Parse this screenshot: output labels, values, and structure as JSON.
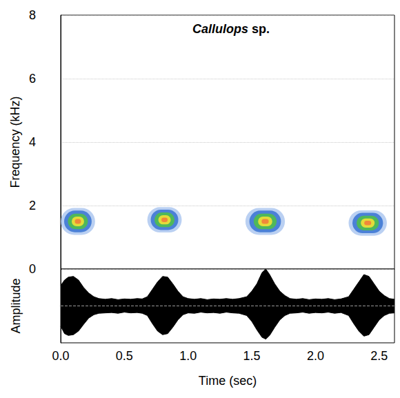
{
  "chart_data": [
    {
      "type": "spectrogram",
      "title": "Callulops sp.",
      "ylabel": "Frequency (kHz)",
      "xlim": [
        0,
        2.62
      ],
      "ylim": [
        0,
        8
      ],
      "yticks": [
        0,
        2,
        4,
        6,
        8
      ],
      "grid": true,
      "tick_labels": "y",
      "calls": {
        "start": [
          0.0,
          0.68,
          1.45,
          2.26
        ],
        "end": [
          0.27,
          0.95,
          1.76,
          2.56
        ],
        "low": [
          1.1,
          1.15,
          1.1,
          1.15
        ],
        "high": [
          1.95,
          1.95,
          1.95,
          1.95
        ],
        "peak": [
          1.5,
          1.55,
          1.5,
          1.45
        ]
      }
    },
    {
      "type": "area",
      "ylabel": "Amplitude",
      "xlabel": "Time (sec)",
      "color": "#000000",
      "xlim": [
        0,
        2.62
      ],
      "xticks": [
        {
          "value": 0,
          "label": "0.0"
        },
        {
          "value": 0.5,
          "label": "0.5"
        },
        {
          "value": 1,
          "label": "1.0"
        },
        {
          "value": 1.5,
          "label": "1.5"
        },
        {
          "value": 2,
          "label": "2.0"
        },
        {
          "value": 2.5,
          "label": "2.5"
        }
      ],
      "ylim": [
        -1,
        1
      ],
      "grid": false,
      "tick_labels": "x",
      "x": [
        0.0,
        0.03,
        0.06,
        0.1,
        0.14,
        0.18,
        0.22,
        0.26,
        0.3,
        0.35,
        0.4,
        0.45,
        0.5,
        0.55,
        0.6,
        0.64,
        0.68,
        0.72,
        0.76,
        0.8,
        0.84,
        0.88,
        0.92,
        0.96,
        1.0,
        1.05,
        1.1,
        1.15,
        1.2,
        1.25,
        1.3,
        1.35,
        1.4,
        1.46,
        1.5,
        1.54,
        1.58,
        1.61,
        1.64,
        1.68,
        1.72,
        1.76,
        1.8,
        1.85,
        1.9,
        1.95,
        2.0,
        2.05,
        2.1,
        2.15,
        2.2,
        2.26,
        2.3,
        2.34,
        2.38,
        2.42,
        2.46,
        2.5,
        2.54,
        2.58,
        2.62
      ],
      "envelope": {
        "upper": [
          0.55,
          0.7,
          0.78,
          0.8,
          0.7,
          0.5,
          0.35,
          0.25,
          0.2,
          0.18,
          0.2,
          0.17,
          0.19,
          0.18,
          0.2,
          0.19,
          0.25,
          0.45,
          0.65,
          0.8,
          0.78,
          0.6,
          0.4,
          0.25,
          0.2,
          0.18,
          0.2,
          0.17,
          0.19,
          0.18,
          0.2,
          0.18,
          0.2,
          0.25,
          0.4,
          0.6,
          0.9,
          1.0,
          0.85,
          0.6,
          0.4,
          0.28,
          0.2,
          0.18,
          0.2,
          0.17,
          0.19,
          0.18,
          0.2,
          0.17,
          0.19,
          0.25,
          0.45,
          0.65,
          0.85,
          0.8,
          0.6,
          0.4,
          0.28,
          0.2,
          0.18
        ],
        "lower": [
          -0.55,
          -0.75,
          -0.8,
          -0.78,
          -0.68,
          -0.5,
          -0.33,
          -0.24,
          -0.2,
          -0.19,
          -0.18,
          -0.2,
          -0.17,
          -0.19,
          -0.18,
          -0.2,
          -0.26,
          -0.48,
          -0.68,
          -0.78,
          -0.75,
          -0.58,
          -0.38,
          -0.24,
          -0.19,
          -0.2,
          -0.17,
          -0.19,
          -0.18,
          -0.2,
          -0.17,
          -0.19,
          -0.2,
          -0.26,
          -0.42,
          -0.65,
          -0.85,
          -0.9,
          -0.8,
          -0.58,
          -0.38,
          -0.26,
          -0.2,
          -0.19,
          -0.17,
          -0.2,
          -0.18,
          -0.19,
          -0.17,
          -0.2,
          -0.18,
          -0.26,
          -0.48,
          -0.68,
          -0.82,
          -0.78,
          -0.58,
          -0.38,
          -0.26,
          -0.2,
          -0.19
        ]
      }
    }
  ]
}
